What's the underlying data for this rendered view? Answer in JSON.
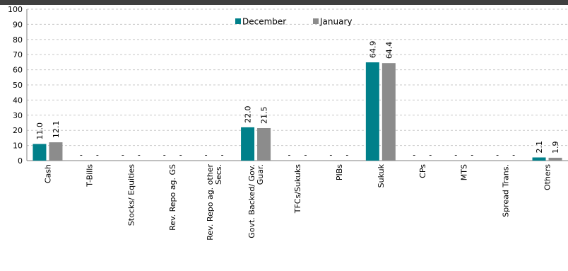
{
  "chart_data": {
    "type": "bar",
    "categories": [
      "Cash",
      "T-Bills",
      "Stocks/ Equities",
      "Rev. Repo ag. GS",
      "Rev. Repo ag. other Secs.",
      "Govt. Backed/ Gov. Guar.",
      "TFCs/Sukuks",
      "PIBs",
      "Sukuk",
      "CPs",
      "MTS",
      "Spread Trans.",
      "Others"
    ],
    "category_lines": [
      [
        "Cash"
      ],
      [
        "T-Bills"
      ],
      [
        "Stocks/ Equities"
      ],
      [
        "Rev. Repo ag. GS"
      ],
      [
        "Rev. Repo ag. other",
        "Secs."
      ],
      [
        "Govt. Backed/ Gov.",
        "Guar."
      ],
      [
        "TFCs/Sukuks"
      ],
      [
        "PIBs"
      ],
      [
        "Sukuk"
      ],
      [
        "CPs"
      ],
      [
        "MTS"
      ],
      [
        "Spread Trans."
      ],
      [
        "Others"
      ]
    ],
    "series": [
      {
        "name": "December",
        "color": "#00808a",
        "values": [
          11.0,
          null,
          null,
          null,
          null,
          22.0,
          null,
          null,
          64.9,
          null,
          null,
          null,
          2.1
        ],
        "labels": [
          "11.0",
          "-",
          "-",
          "-",
          "-",
          "22.0",
          "-",
          "-",
          "64.9",
          "-",
          "-",
          "-",
          "2.1"
        ]
      },
      {
        "name": "January",
        "color": "#8c8c8c",
        "values": [
          12.1,
          null,
          null,
          null,
          null,
          21.5,
          null,
          null,
          64.4,
          null,
          null,
          null,
          1.9
        ],
        "labels": [
          "12.1",
          "-",
          "-",
          "-",
          "-",
          "21.5",
          "-",
          "-",
          "64.4",
          "-",
          "-",
          "-",
          "1.9"
        ]
      }
    ],
    "yticks": [
      0,
      10,
      20,
      30,
      40,
      50,
      60,
      70,
      80,
      90,
      100
    ],
    "ylim": [
      0,
      100
    ],
    "grid": true,
    "legend_position": "top-center"
  }
}
